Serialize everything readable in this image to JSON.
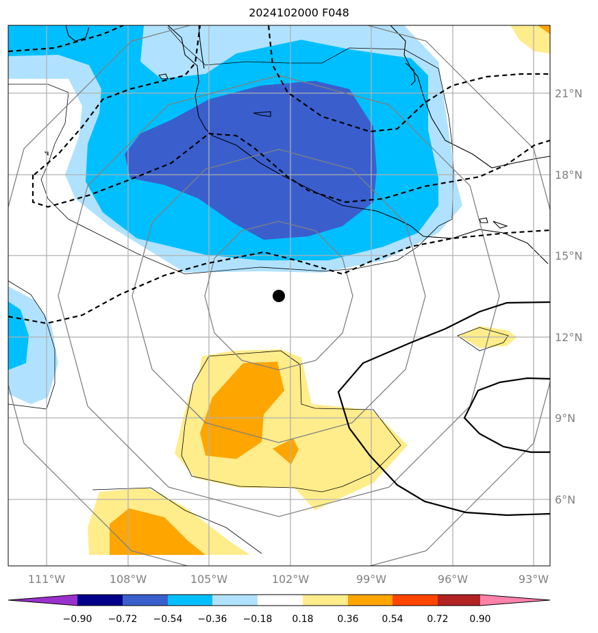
{
  "title": "2024102000 F048",
  "map": {
    "lon_labels": [
      "111°W",
      "108°W",
      "105°W",
      "102°W",
      "99°W",
      "96°W",
      "93°W"
    ],
    "lat_labels": [
      "21°N",
      "18°N",
      "15°N",
      "12°N",
      "9°N",
      "6°N"
    ],
    "center_marker": {
      "lon": -102.4,
      "lat": 13.5
    }
  },
  "colorbar": {
    "ticks": [
      "−0.90",
      "−0.72",
      "−0.54",
      "−0.36",
      "−0.18",
      "0.18",
      "0.36",
      "0.54",
      "0.72",
      "0.90"
    ],
    "colors": [
      "#9932cc",
      "#00008b",
      "#3a5fcd",
      "#00bfff",
      "#b0e2ff",
      "#ffffff",
      "#ffec8b",
      "#ffa500",
      "#ff4500",
      "#b22222",
      "#ff82ab"
    ]
  }
}
